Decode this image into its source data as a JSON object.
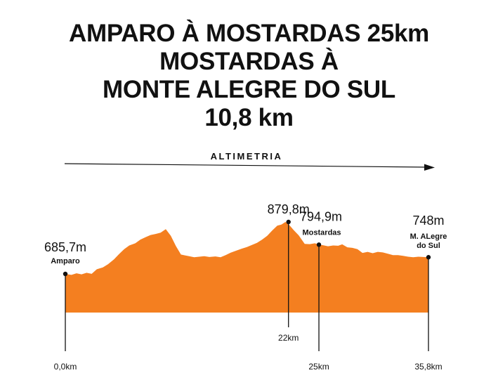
{
  "title_lines": [
    "AMPARO À MOSTARDAS 25km",
    "MOSTARDAS À",
    "MONTE ALEGRE DO SUL",
    "10,8 km"
  ],
  "colors": {
    "area": "#f47f20",
    "text": "#111111",
    "line": "#111111"
  },
  "chart_data": {
    "type": "area",
    "title": "ALTIMETRIA",
    "xlabel": "",
    "ylabel": "",
    "x_unit": "km",
    "y_unit": "m",
    "xlim": [
      0,
      35.8
    ],
    "ylim": [
      560,
      900
    ],
    "grid": false,
    "series": [
      {
        "x": [
          0,
          0.6,
          1.1,
          1.6,
          2.1,
          2.6,
          3.1,
          3.7,
          4.2,
          4.8,
          5.3,
          5.8,
          6.3,
          6.9,
          7.4,
          7.9,
          8.4,
          8.9,
          9.4,
          9.9,
          10.4,
          10.9,
          11.4,
          11.8,
          12.2,
          12.7,
          13.2,
          13.7,
          14.2,
          14.8,
          15.3,
          15.8,
          16.3,
          16.8,
          17.4,
          17.9,
          18.4,
          18.9,
          19.4,
          19.9,
          20.4,
          20.9,
          21.3,
          21.7,
          22.0,
          22.5,
          23.0,
          23.6,
          24.1,
          24.6,
          25.0,
          25.4,
          25.9,
          26.4,
          26.9,
          27.3,
          27.8,
          28.3,
          28.8,
          29.3,
          29.8,
          30.3,
          30.8,
          31.3,
          31.8,
          32.3,
          32.8,
          33.3,
          33.8,
          34.3,
          34.8,
          35.3,
          35.8
        ],
        "y": [
          685.7,
          682,
          688,
          684,
          690,
          686,
          703,
          710,
          722,
          740,
          760,
          778,
          792,
          800,
          814,
          823,
          831,
          835,
          840,
          853,
          828,
          790,
          758,
          755,
          752,
          748,
          750,
          752,
          749,
          751,
          748,
          756,
          765,
          772,
          780,
          786,
          794,
          802,
          814,
          828,
          848,
          866,
          870,
          879.8,
          872,
          850,
          830,
          798,
          797,
          800,
          794.9,
          793,
          789,
          792,
          791,
          796,
          785,
          783,
          778,
          764,
          768,
          763,
          768,
          766,
          761,
          756,
          756,
          753,
          750,
          748,
          750,
          749,
          748
        ]
      }
    ],
    "peak_labels": [
      {
        "x": 0,
        "y": 685.7,
        "value": "685,7m",
        "place": "Amparo"
      },
      {
        "x": 22,
        "y": 879.8,
        "value": "879,8m",
        "place": ""
      },
      {
        "x": 25,
        "y": 794.9,
        "value": "794,9m",
        "place": "Mostardas"
      },
      {
        "x": 35.8,
        "y": 748,
        "value": "748m",
        "place": "M. ALegre\ndo Sul"
      }
    ],
    "distance_marks": [
      {
        "x": 0,
        "label": "0,0km",
        "level": "low"
      },
      {
        "x": 22,
        "label": "22km",
        "level": "high"
      },
      {
        "x": 25,
        "label": "25km",
        "level": "low"
      },
      {
        "x": 35.8,
        "label": "35,8km",
        "level": "low"
      }
    ]
  }
}
